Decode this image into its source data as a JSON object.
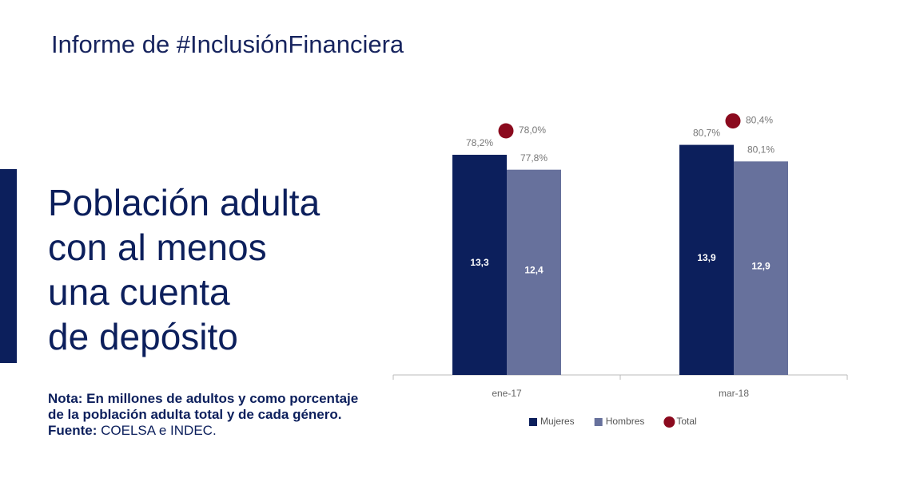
{
  "header": {
    "title": "Informe de #InclusiónFinanciera"
  },
  "heading": [
    "Población adulta",
    "con al menos",
    "una cuenta",
    "de depósito"
  ],
  "note": {
    "lines": [
      "Nota: En millones de adultos y como porcentaje",
      "de la población adulta total y de cada género."
    ],
    "source_label": "Fuente:",
    "source": "COELSA e INDEC."
  },
  "chart_data": {
    "type": "bar",
    "categories": [
      "ene-17",
      "mar-18"
    ],
    "series": [
      {
        "name": "Mujeres",
        "color": "#0c1f5c",
        "values": [
          13.3,
          13.9
        ],
        "value_labels": [
          "13,3",
          "13,9"
        ],
        "share_values": [
          78.2,
          80.7
        ],
        "share_labels": [
          "78,2%",
          "80,7%"
        ]
      },
      {
        "name": "Hombres",
        "color": "#67719c",
        "values": [
          12.4,
          12.9
        ],
        "value_labels": [
          "12,4",
          "12,9"
        ],
        "share_values": [
          77.8,
          80.1
        ],
        "share_labels": [
          "77,8%",
          "80,1%"
        ]
      }
    ],
    "total": {
      "name": "Total",
      "color": "#8b0a1e",
      "values": [
        78.0,
        80.4
      ],
      "value_labels": [
        "78,0%",
        "80,4%"
      ]
    },
    "ylim": [
      0,
      15
    ]
  }
}
